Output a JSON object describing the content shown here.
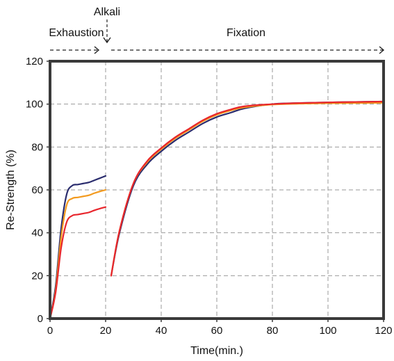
{
  "chart_data": {
    "type": "line",
    "xlabel": "Time(min.)",
    "ylabel": "Re-Strength (%)",
    "xlim": [
      0,
      120
    ],
    "ylim": [
      0,
      120
    ],
    "xticks": [
      0,
      20,
      40,
      60,
      80,
      100,
      120
    ],
    "yticks": [
      0,
      20,
      40,
      60,
      80,
      100,
      120
    ],
    "grid": true,
    "annotations": {
      "alkali": "Alkali",
      "alkali_x": 22,
      "exhaustion": "Exhaustion",
      "exhaustion_range": [
        0,
        22
      ],
      "fixation": "Fixation",
      "fixation_range": [
        22,
        120
      ]
    },
    "series": [
      {
        "color": "#2b2d6e",
        "segments": [
          [
            [
              0,
              0
            ],
            [
              2,
              15
            ],
            [
              4,
              42
            ],
            [
              6,
              58
            ],
            [
              8,
              62
            ],
            [
              10,
              62.5
            ],
            [
              12,
              63
            ],
            [
              14,
              63.5
            ],
            [
              16,
              64.5
            ],
            [
              18,
              65.5
            ],
            [
              20,
              66.5
            ]
          ],
          [
            [
              22,
              20
            ],
            [
              25,
              40
            ],
            [
              30,
              62
            ],
            [
              35,
              72
            ],
            [
              40,
              78
            ],
            [
              45,
              83
            ],
            [
              50,
              87
            ],
            [
              55,
              91
            ],
            [
              60,
              94
            ],
            [
              65,
              96
            ],
            [
              70,
              98
            ],
            [
              80,
              100
            ],
            [
              90,
              100.5
            ],
            [
              100,
              100.8
            ],
            [
              110,
              101
            ],
            [
              120,
              101.2
            ]
          ]
        ]
      },
      {
        "color": "#f39a1e",
        "segments": [
          [
            [
              0,
              0
            ],
            [
              2,
              13
            ],
            [
              4,
              38
            ],
            [
              6,
              53
            ],
            [
              8,
              56
            ],
            [
              10,
              56.5
            ],
            [
              12,
              57
            ],
            [
              14,
              57.5
            ],
            [
              16,
              58.5
            ],
            [
              18,
              59.3
            ],
            [
              20,
              60
            ]
          ],
          [
            [
              22,
              20
            ],
            [
              25,
              41
            ],
            [
              30,
              63
            ],
            [
              35,
              73
            ],
            [
              40,
              79
            ],
            [
              45,
              84
            ],
            [
              50,
              88
            ],
            [
              55,
              92
            ],
            [
              60,
              95
            ],
            [
              65,
              97
            ],
            [
              70,
              98.5
            ],
            [
              80,
              99.8
            ],
            [
              90,
              100.2
            ],
            [
              100,
              100.4
            ],
            [
              110,
              100.5
            ],
            [
              120,
              100.6
            ]
          ]
        ]
      },
      {
        "color": "#e8262d",
        "segments": [
          [
            [
              0,
              0
            ],
            [
              2,
              12
            ],
            [
              4,
              33
            ],
            [
              6,
              45
            ],
            [
              8,
              48
            ],
            [
              10,
              48.5
            ],
            [
              12,
              49
            ],
            [
              14,
              49.5
            ],
            [
              16,
              50.5
            ],
            [
              18,
              51.3
            ],
            [
              20,
              52
            ]
          ],
          [
            [
              22,
              20
            ],
            [
              25,
              41
            ],
            [
              30,
              63
            ],
            [
              35,
              73.5
            ],
            [
              40,
              79.5
            ],
            [
              45,
              84.5
            ],
            [
              50,
              88.5
            ],
            [
              55,
              92.5
            ],
            [
              60,
              95.5
            ],
            [
              65,
              97.5
            ],
            [
              70,
              99
            ],
            [
              80,
              100
            ],
            [
              90,
              100.5
            ],
            [
              100,
              100.8
            ],
            [
              110,
              101
            ],
            [
              120,
              101.2
            ]
          ]
        ]
      }
    ]
  }
}
